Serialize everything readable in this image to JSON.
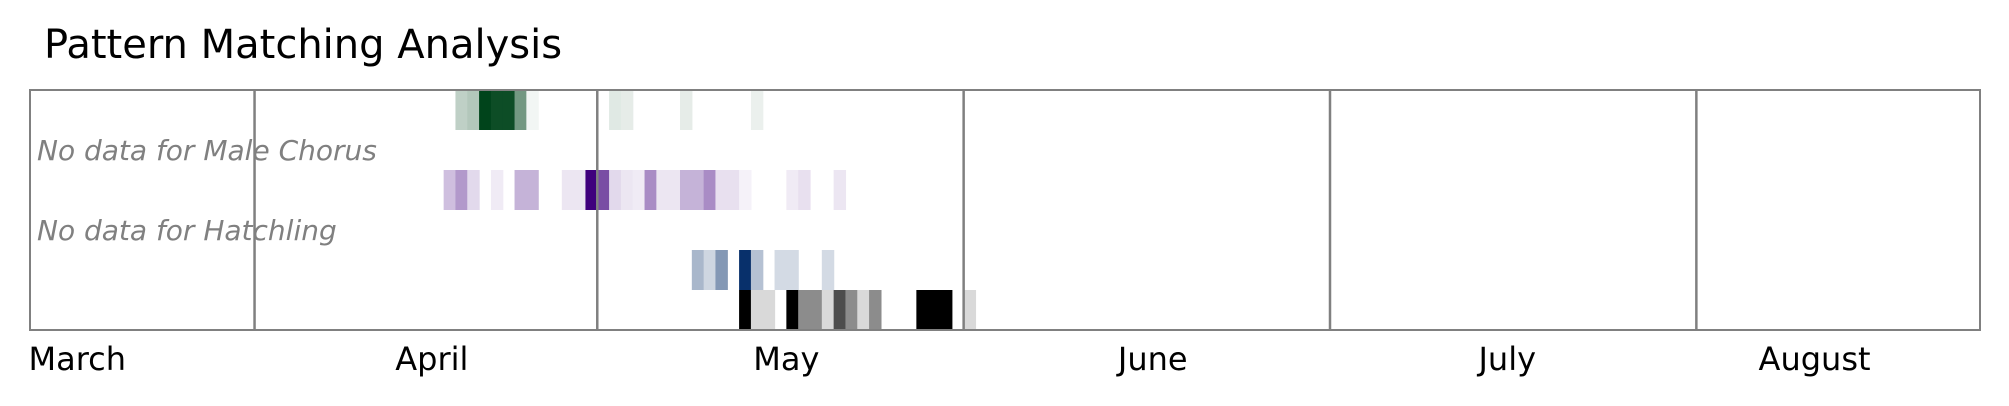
{
  "chart_data": {
    "type": "heatmap",
    "title": "Pattern Matching Analysis",
    "xlabel": "",
    "ylabel": "",
    "x_axis": "date",
    "xlim": [
      "2009-02-25",
      "2009-08-09"
    ],
    "month_boundaries": [
      "2009-03-16",
      "2009-04-14",
      "2009-05-15",
      "2009-06-15",
      "2009-07-16"
    ],
    "tick_labels": [
      {
        "label": "March",
        "date": "2009-03-01"
      },
      {
        "label": "April",
        "date": "2009-03-31"
      },
      {
        "label": "May",
        "date": "2009-04-30"
      },
      {
        "label": "June",
        "date": "2009-05-31"
      },
      {
        "label": "July",
        "date": "2009-06-30"
      },
      {
        "label": "August",
        "date": "2009-07-26"
      }
    ],
    "grid": false,
    "legend": "none",
    "rows": [
      {
        "no_data_text": "",
        "color": "#00441b",
        "cells": [
          {
            "date": "2009-04-02",
            "value": 0.25
          },
          {
            "date": "2009-04-03",
            "value": 0.3
          },
          {
            "date": "2009-04-04",
            "value": 1.0
          },
          {
            "date": "2009-04-05",
            "value": 0.95
          },
          {
            "date": "2009-04-06",
            "value": 0.95
          },
          {
            "date": "2009-04-07",
            "value": 0.55
          },
          {
            "date": "2009-04-08",
            "value": 0.05
          },
          {
            "date": "2009-04-15",
            "value": 0.12
          },
          {
            "date": "2009-04-16",
            "value": 0.1
          },
          {
            "date": "2009-04-21",
            "value": 0.1
          },
          {
            "date": "2009-04-27",
            "value": 0.08
          }
        ]
      },
      {
        "no_data_text": "No data for Male Chorus",
        "cells": []
      },
      {
        "no_data_text": "",
        "color": "#3f007d",
        "cells": [
          {
            "date": "2009-04-01",
            "value": 0.25
          },
          {
            "date": "2009-04-02",
            "value": 0.4
          },
          {
            "date": "2009-04-03",
            "value": 0.15
          },
          {
            "date": "2009-04-05",
            "value": 0.08
          },
          {
            "date": "2009-04-07",
            "value": 0.3
          },
          {
            "date": "2009-04-08",
            "value": 0.3
          },
          {
            "date": "2009-04-11",
            "value": 0.1
          },
          {
            "date": "2009-04-12",
            "value": 0.1
          },
          {
            "date": "2009-04-13",
            "value": 1.0
          },
          {
            "date": "2009-04-14",
            "value": 0.7
          },
          {
            "date": "2009-04-15",
            "value": 0.15
          },
          {
            "date": "2009-04-16",
            "value": 0.1
          },
          {
            "date": "2009-04-17",
            "value": 0.08
          },
          {
            "date": "2009-04-18",
            "value": 0.45
          },
          {
            "date": "2009-04-19",
            "value": 0.1
          },
          {
            "date": "2009-04-20",
            "value": 0.1
          },
          {
            "date": "2009-04-21",
            "value": 0.3
          },
          {
            "date": "2009-04-22",
            "value": 0.3
          },
          {
            "date": "2009-04-23",
            "value": 0.45
          },
          {
            "date": "2009-04-24",
            "value": 0.12
          },
          {
            "date": "2009-04-25",
            "value": 0.12
          },
          {
            "date": "2009-04-26",
            "value": 0.05
          },
          {
            "date": "2009-04-30",
            "value": 0.08
          },
          {
            "date": "2009-05-01",
            "value": 0.12
          },
          {
            "date": "2009-05-04",
            "value": 0.1
          }
        ]
      },
      {
        "no_data_text": "No data for Hatchling",
        "cells": []
      },
      {
        "no_data_text": "",
        "color": "#08306b",
        "cells": [
          {
            "date": "2009-04-22",
            "value": 0.35
          },
          {
            "date": "2009-04-23",
            "value": 0.2
          },
          {
            "date": "2009-04-24",
            "value": 0.5
          },
          {
            "date": "2009-04-26",
            "value": 1.0
          },
          {
            "date": "2009-04-27",
            "value": 0.3
          },
          {
            "date": "2009-04-29",
            "value": 0.18
          },
          {
            "date": "2009-04-30",
            "value": 0.18
          },
          {
            "date": "2009-05-03",
            "value": 0.18
          }
        ]
      },
      {
        "no_data_text": "",
        "color": "#000000",
        "cells": [
          {
            "date": "2009-04-26",
            "value": 1.0
          },
          {
            "date": "2009-04-27",
            "value": 0.15
          },
          {
            "date": "2009-04-28",
            "value": 0.15
          },
          {
            "date": "2009-04-30",
            "value": 1.0
          },
          {
            "date": "2009-05-01",
            "value": 0.45
          },
          {
            "date": "2009-05-02",
            "value": 0.45
          },
          {
            "date": "2009-05-03",
            "value": 0.15
          },
          {
            "date": "2009-05-04",
            "value": 0.7
          },
          {
            "date": "2009-05-05",
            "value": 0.45
          },
          {
            "date": "2009-05-06",
            "value": 0.15
          },
          {
            "date": "2009-05-07",
            "value": 0.45
          },
          {
            "date": "2009-05-11",
            "value": 1.0
          },
          {
            "date": "2009-05-12",
            "value": 1.0
          },
          {
            "date": "2009-05-13",
            "value": 1.0
          },
          {
            "date": "2009-05-15",
            "value": 0.15
          }
        ]
      }
    ]
  }
}
